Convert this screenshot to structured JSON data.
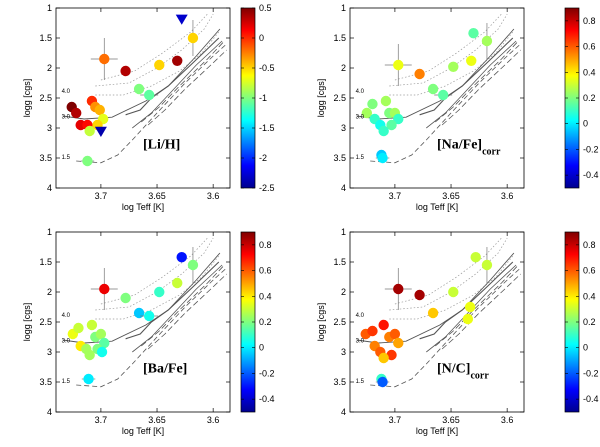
{
  "figure": {
    "colors": {
      "axis": "#000000",
      "track": "#555555",
      "isochrone": "#999999"
    },
    "colormap": [
      "#00008f",
      "#0000ff",
      "#007fff",
      "#00ffff",
      "#7fff7f",
      "#ffff00",
      "#ff7f00",
      "#ff0000",
      "#7f0000"
    ]
  },
  "chart_data": [
    {
      "type": "scatter",
      "label": "[Li/H]",
      "label_sub": "",
      "xlabel": "log Teff [K]",
      "ylabel": "logg [cgs]",
      "xlim": [
        3.74,
        3.585
      ],
      "ylim": [
        4,
        1
      ],
      "xticks": [
        3.7,
        3.65,
        3.6
      ],
      "yticks": [
        1,
        1.5,
        2,
        2.5,
        3,
        3.5,
        4
      ],
      "track_labels": [
        "4.0",
        "3.0",
        "1.5"
      ],
      "colorbar": {
        "min": -2.5,
        "max": 0.5,
        "ticks": [
          -2.5,
          -2,
          -1.5,
          -1,
          -0.5,
          0,
          0.5
        ]
      },
      "points": [
        {
          "x": 3.697,
          "y": 1.85,
          "c": -0.2,
          "xerr": 0.012,
          "yerr": 0.35
        },
        {
          "x": 3.678,
          "y": 2.05,
          "c": 0.35
        },
        {
          "x": 3.632,
          "y": 1.88,
          "c": 0.4
        },
        {
          "x": 3.618,
          "y": 1.5,
          "c": -0.5,
          "yerr": 0.3
        },
        {
          "x": 3.628,
          "y": 1.18,
          "c": -2.3,
          "shape": "tri"
        },
        {
          "x": 3.648,
          "y": 1.95,
          "c": -0.5
        },
        {
          "x": 3.666,
          "y": 2.35,
          "c": -1.0
        },
        {
          "x": 3.657,
          "y": 2.45,
          "c": -1.1,
          "xerr": 0.008
        },
        {
          "x": 3.726,
          "y": 2.65,
          "c": 0.5
        },
        {
          "x": 3.722,
          "y": 2.75,
          "c": 0.35
        },
        {
          "x": 3.718,
          "y": 2.95,
          "c": 0.2
        },
        {
          "x": 3.712,
          "y": 2.95,
          "c": 0.1
        },
        {
          "x": 3.708,
          "y": 2.55,
          "c": 0.0
        },
        {
          "x": 3.705,
          "y": 2.65,
          "c": -0.3
        },
        {
          "x": 3.701,
          "y": 2.7,
          "c": -0.4
        },
        {
          "x": 3.698,
          "y": 2.85,
          "c": -0.7
        },
        {
          "x": 3.703,
          "y": 2.95,
          "c": -0.5
        },
        {
          "x": 3.71,
          "y": 3.05,
          "c": -0.8
        },
        {
          "x": 3.7,
          "y": 3.05,
          "c": -2.4,
          "shape": "tri"
        },
        {
          "x": 3.712,
          "y": 3.55,
          "c": -1.0,
          "xerr": 0.006
        }
      ]
    },
    {
      "type": "scatter",
      "label": "[Na/Fe]",
      "label_sub": "corr",
      "xlabel": "log Teff [K]",
      "ylabel": "logg [cgs]",
      "xlim": [
        3.74,
        3.585
      ],
      "ylim": [
        4,
        1
      ],
      "xticks": [
        3.7,
        3.65,
        3.6
      ],
      "yticks": [
        1,
        1.5,
        2,
        2.5,
        3,
        3.5,
        4
      ],
      "track_labels": [
        "4.0",
        "3.0",
        "1.5"
      ],
      "colorbar": {
        "min": -0.5,
        "max": 0.9,
        "ticks": [
          -0.4,
          -0.2,
          0,
          0.2,
          0.4,
          0.6,
          0.8
        ]
      },
      "points": [
        {
          "x": 3.697,
          "y": 1.95,
          "c": 0.35,
          "xerr": 0.012,
          "yerr": 0.35
        },
        {
          "x": 3.678,
          "y": 2.1,
          "c": 0.55
        },
        {
          "x": 3.63,
          "y": 1.42,
          "c": 0.15
        },
        {
          "x": 3.618,
          "y": 1.55,
          "c": 0.25,
          "yerr": 0.3
        },
        {
          "x": 3.632,
          "y": 1.88,
          "c": 0.35
        },
        {
          "x": 3.648,
          "y": 1.98,
          "c": 0.25
        },
        {
          "x": 3.666,
          "y": 2.35,
          "c": 0.2
        },
        {
          "x": 3.657,
          "y": 2.45,
          "c": 0.15,
          "xerr": 0.008
        },
        {
          "x": 3.725,
          "y": 2.75,
          "c": 0.25
        },
        {
          "x": 3.72,
          "y": 2.6,
          "c": 0.2
        },
        {
          "x": 3.718,
          "y": 2.85,
          "c": 0.1
        },
        {
          "x": 3.713,
          "y": 2.95,
          "c": 0.05
        },
        {
          "x": 3.708,
          "y": 2.55,
          "c": 0.25
        },
        {
          "x": 3.705,
          "y": 2.75,
          "c": 0.2
        },
        {
          "x": 3.7,
          "y": 2.75,
          "c": 0.25
        },
        {
          "x": 3.697,
          "y": 2.85,
          "c": 0.1
        },
        {
          "x": 3.703,
          "y": 2.95,
          "c": 0.15
        },
        {
          "x": 3.71,
          "y": 3.05,
          "c": 0.1
        },
        {
          "x": 3.712,
          "y": 3.45,
          "c": -0.05
        },
        {
          "x": 3.711,
          "y": 3.5,
          "c": 0.0,
          "xerr": 0.006
        }
      ]
    },
    {
      "type": "scatter",
      "label": "[Ba/Fe]",
      "label_sub": "",
      "xlabel": "log Teff [K]",
      "ylabel": "logg [cgs]",
      "xlim": [
        3.74,
        3.585
      ],
      "ylim": [
        4,
        1
      ],
      "xticks": [
        3.7,
        3.65,
        3.6
      ],
      "yticks": [
        1,
        1.5,
        2,
        2.5,
        3,
        3.5,
        4
      ],
      "track_labels": [
        "4.0",
        "3.0",
        "1.5"
      ],
      "colorbar": {
        "min": -0.5,
        "max": 0.9,
        "ticks": [
          -0.4,
          -0.2,
          0,
          0.2,
          0.4,
          0.6,
          0.8
        ]
      },
      "points": [
        {
          "x": 3.697,
          "y": 1.95,
          "c": 0.75,
          "xerr": 0.012,
          "yerr": 0.35
        },
        {
          "x": 3.678,
          "y": 2.1,
          "c": 0.2
        },
        {
          "x": 3.628,
          "y": 1.42,
          "c": -0.3
        },
        {
          "x": 3.618,
          "y": 1.55,
          "c": 0.2,
          "yerr": 0.3
        },
        {
          "x": 3.632,
          "y": 1.85,
          "c": 0.3
        },
        {
          "x": 3.648,
          "y": 2.0,
          "c": 0.1
        },
        {
          "x": 3.666,
          "y": 2.35,
          "c": -0.05
        },
        {
          "x": 3.657,
          "y": 2.4,
          "c": 0.05,
          "xerr": 0.008
        },
        {
          "x": 3.725,
          "y": 2.7,
          "c": 0.35
        },
        {
          "x": 3.72,
          "y": 2.6,
          "c": 0.3
        },
        {
          "x": 3.718,
          "y": 2.9,
          "c": 0.4
        },
        {
          "x": 3.713,
          "y": 2.95,
          "c": 0.25
        },
        {
          "x": 3.708,
          "y": 2.55,
          "c": 0.3
        },
        {
          "x": 3.705,
          "y": 2.75,
          "c": 0.2
        },
        {
          "x": 3.7,
          "y": 2.7,
          "c": 0.25
        },
        {
          "x": 3.697,
          "y": 2.85,
          "c": 0.15
        },
        {
          "x": 3.703,
          "y": 2.95,
          "c": 0.2
        },
        {
          "x": 3.71,
          "y": 3.05,
          "c": 0.25
        },
        {
          "x": 3.699,
          "y": 3.0,
          "c": 0.05
        },
        {
          "x": 3.711,
          "y": 3.45,
          "c": 0.0,
          "xerr": 0.006
        }
      ]
    },
    {
      "type": "scatter",
      "label": "[N/C]",
      "label_sub": "corr",
      "xlabel": "log Teff [K]",
      "ylabel": "logg [cgs]",
      "xlim": [
        3.74,
        3.585
      ],
      "ylim": [
        4,
        1
      ],
      "xticks": [
        3.7,
        3.65,
        3.6
      ],
      "yticks": [
        1,
        1.5,
        2,
        2.5,
        3,
        3.5,
        4
      ],
      "track_labels": [
        "4.0",
        "3.0",
        "1.5"
      ],
      "colorbar": {
        "min": -0.5,
        "max": 0.9,
        "ticks": [
          -0.4,
          -0.2,
          0,
          0.2,
          0.4,
          0.6,
          0.8
        ]
      },
      "points": [
        {
          "x": 3.697,
          "y": 1.95,
          "c": 0.85,
          "xerr": 0.012,
          "yerr": 0.35
        },
        {
          "x": 3.678,
          "y": 2.05,
          "c": 0.85
        },
        {
          "x": 3.628,
          "y": 1.42,
          "c": 0.3
        },
        {
          "x": 3.618,
          "y": 1.55,
          "c": 0.3,
          "yerr": 0.3
        },
        {
          "x": 3.633,
          "y": 2.25,
          "c": 0.35
        },
        {
          "x": 3.648,
          "y": 2.0,
          "c": 0.3
        },
        {
          "x": 3.635,
          "y": 2.45,
          "c": 0.35
        },
        {
          "x": 3.666,
          "y": 2.35,
          "c": 0.45
        },
        {
          "x": 3.726,
          "y": 2.7,
          "c": 0.6
        },
        {
          "x": 3.72,
          "y": 2.65,
          "c": 0.65
        },
        {
          "x": 3.71,
          "y": 2.55,
          "c": 0.7
        },
        {
          "x": 3.718,
          "y": 2.9,
          "c": 0.55
        },
        {
          "x": 3.713,
          "y": 3.0,
          "c": 0.6
        },
        {
          "x": 3.705,
          "y": 2.75,
          "c": 0.55
        },
        {
          "x": 3.7,
          "y": 2.7,
          "c": 0.6
        },
        {
          "x": 3.697,
          "y": 2.85,
          "c": 0.5
        },
        {
          "x": 3.703,
          "y": 3.05,
          "c": 0.65
        },
        {
          "x": 3.71,
          "y": 3.1,
          "c": 0.45
        },
        {
          "x": 3.712,
          "y": 3.45,
          "c": 0.1
        },
        {
          "x": 3.711,
          "y": 3.5,
          "c": -0.2,
          "xerr": 0.006
        }
      ]
    }
  ]
}
